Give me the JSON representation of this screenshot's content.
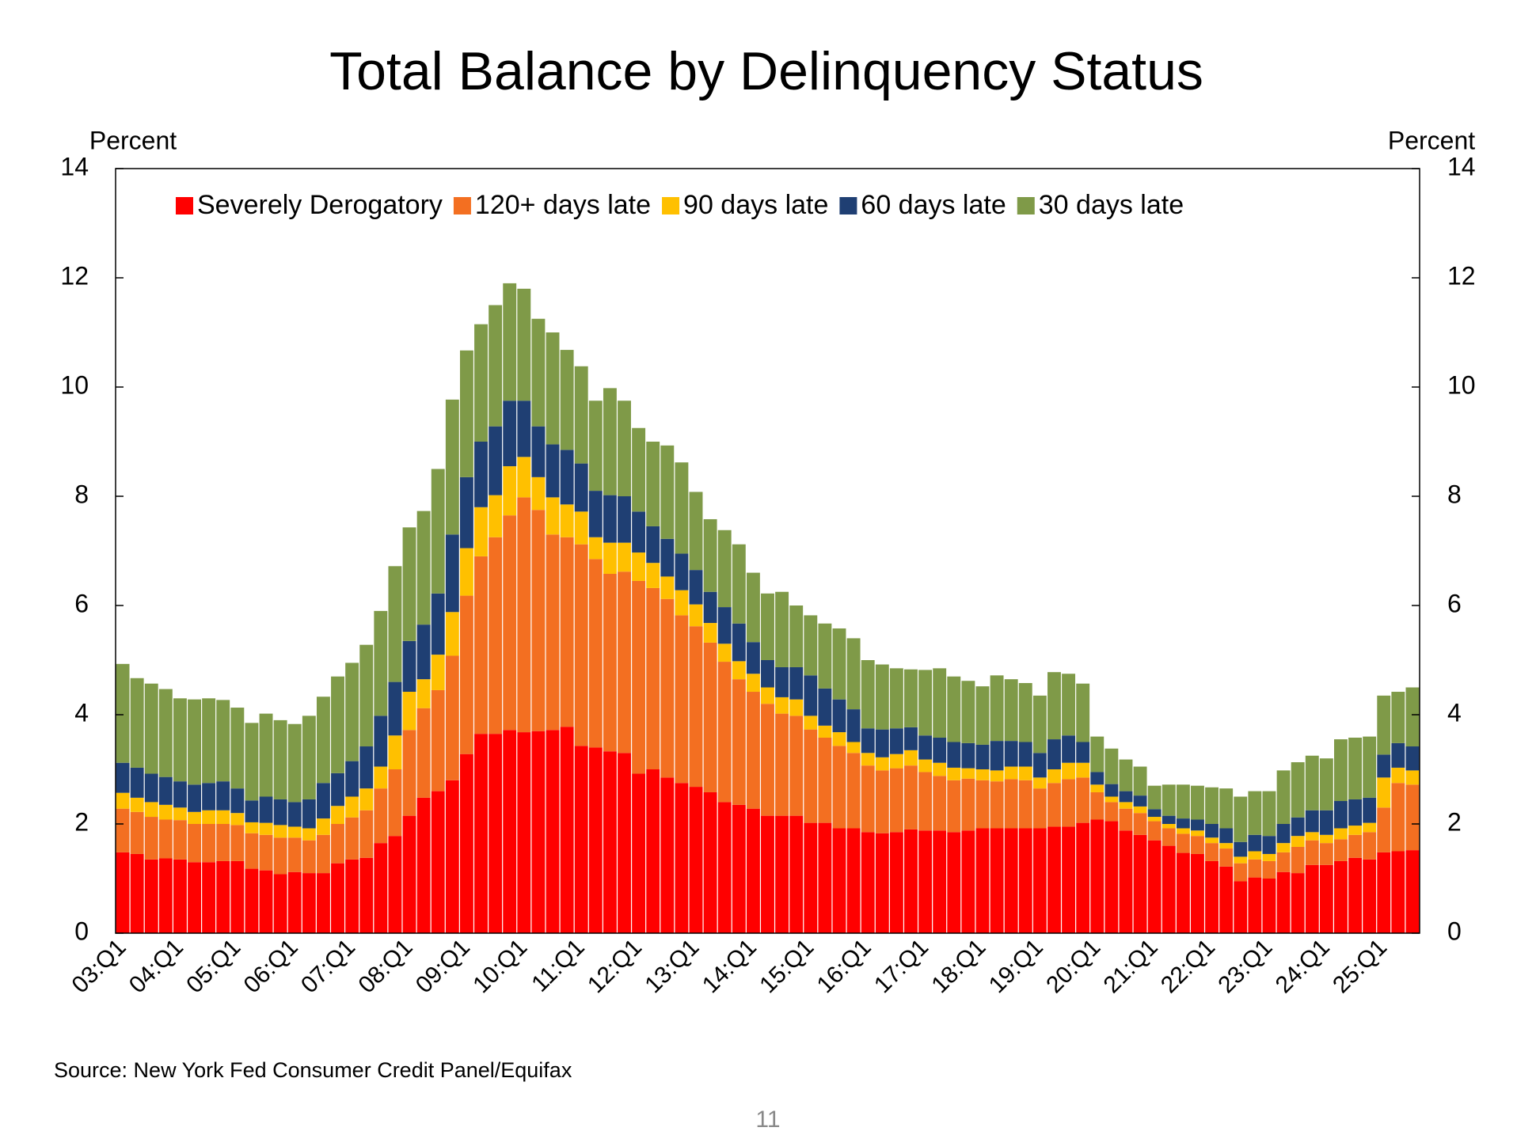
{
  "chart_data": {
    "type": "stacked_bar",
    "title": "Total Balance by Delinquency Status",
    "ylabel": "Percent",
    "y2label": "Percent",
    "source": "Source: New York Fed Consumer Credit Panel/Equifax",
    "page_number": "11",
    "categories": [
      "03:Q1",
      null,
      null,
      null,
      "04:Q1",
      null,
      null,
      null,
      "05:Q1",
      null,
      null,
      null,
      "06:Q1",
      null,
      null,
      null,
      "07:Q1",
      null,
      null,
      null,
      "08:Q1",
      null,
      null,
      null,
      "09:Q1",
      null,
      null,
      null,
      "10:Q1",
      null,
      null,
      null,
      "11:Q1",
      null,
      null,
      null,
      "12:Q1",
      null,
      null,
      null,
      "13:Q1",
      null,
      null,
      null,
      "14:Q1",
      null,
      null,
      null,
      "15:Q1",
      null,
      null,
      null,
      "16:Q1",
      null,
      null,
      null,
      "17:Q1",
      null,
      null,
      null,
      "18:Q1",
      null,
      null,
      null,
      "19:Q1",
      null,
      null,
      null,
      "20:Q1",
      null,
      null,
      null,
      "21:Q1",
      null,
      null,
      null,
      "22:Q1",
      null,
      null,
      null,
      "23:Q1",
      null,
      null,
      null,
      "24:Q1",
      null,
      null,
      null,
      "25:Q1",
      null,
      null
    ],
    "series": [
      {
        "name": "Severely Derogatory",
        "color": "#ff0000",
        "values": [
          1.48,
          1.45,
          1.35,
          1.37,
          1.35,
          1.3,
          1.3,
          1.32,
          1.32,
          1.18,
          1.15,
          1.08,
          1.12,
          1.1,
          1.1,
          1.28,
          1.35,
          1.38,
          1.65,
          1.78,
          2.15,
          2.48,
          2.6,
          2.8,
          3.28,
          3.65,
          3.65,
          3.72,
          3.68,
          3.7,
          3.72,
          3.78,
          3.43,
          3.4,
          3.33,
          3.3,
          2.92,
          3.0,
          2.85,
          2.75,
          2.68,
          2.58,
          2.4,
          2.35,
          2.28,
          2.15,
          2.15,
          2.15,
          2.02,
          2.02,
          1.92,
          1.92,
          1.85,
          1.83,
          1.85,
          1.9,
          1.88,
          1.88,
          1.85,
          1.88,
          1.92,
          1.92,
          1.92,
          1.92,
          1.92,
          1.95,
          1.95,
          2.02,
          2.08,
          2.05,
          1.88,
          1.8,
          1.7,
          1.6,
          1.47,
          1.45,
          1.32,
          1.22,
          0.95,
          1.02,
          1.0,
          1.12,
          1.1,
          1.25,
          1.25,
          1.32,
          1.38,
          1.35,
          1.48,
          1.5,
          1.52
        ]
      },
      {
        "name": "120+ days late",
        "color": "#f36f21",
        "values": [
          0.8,
          0.77,
          0.78,
          0.71,
          0.72,
          0.7,
          0.7,
          0.68,
          0.66,
          0.65,
          0.65,
          0.67,
          0.63,
          0.6,
          0.7,
          0.72,
          0.77,
          0.87,
          1.0,
          1.22,
          1.57,
          1.64,
          1.85,
          2.28,
          2.9,
          3.25,
          3.6,
          3.93,
          4.3,
          4.05,
          3.58,
          3.47,
          3.69,
          3.45,
          3.25,
          3.32,
          3.53,
          3.32,
          3.27,
          3.07,
          2.94,
          2.74,
          2.57,
          2.3,
          2.14,
          2.05,
          1.87,
          1.83,
          1.71,
          1.56,
          1.51,
          1.38,
          1.22,
          1.15,
          1.17,
          1.17,
          1.07,
          1.0,
          0.95,
          0.95,
          0.88,
          0.86,
          0.9,
          0.88,
          0.73,
          0.8,
          0.87,
          0.83,
          0.5,
          0.35,
          0.4,
          0.4,
          0.35,
          0.32,
          0.35,
          0.33,
          0.33,
          0.33,
          0.33,
          0.33,
          0.32,
          0.36,
          0.48,
          0.45,
          0.4,
          0.4,
          0.42,
          0.5,
          0.82,
          1.25,
          1.2
        ]
      },
      {
        "name": "90 days late",
        "color": "#ffc000",
        "values": [
          0.29,
          0.26,
          0.27,
          0.27,
          0.23,
          0.22,
          0.25,
          0.25,
          0.22,
          0.2,
          0.22,
          0.23,
          0.2,
          0.22,
          0.3,
          0.33,
          0.38,
          0.4,
          0.4,
          0.62,
          0.7,
          0.53,
          0.65,
          0.8,
          0.87,
          0.9,
          0.77,
          0.9,
          0.74,
          0.6,
          0.68,
          0.6,
          0.6,
          0.4,
          0.57,
          0.53,
          0.52,
          0.46,
          0.41,
          0.46,
          0.4,
          0.36,
          0.33,
          0.33,
          0.33,
          0.3,
          0.3,
          0.3,
          0.25,
          0.22,
          0.25,
          0.2,
          0.23,
          0.24,
          0.26,
          0.28,
          0.23,
          0.24,
          0.23,
          0.19,
          0.2,
          0.2,
          0.23,
          0.25,
          0.2,
          0.25,
          0.3,
          0.27,
          0.14,
          0.1,
          0.12,
          0.12,
          0.08,
          0.08,
          0.1,
          0.1,
          0.1,
          0.1,
          0.12,
          0.15,
          0.13,
          0.17,
          0.2,
          0.15,
          0.15,
          0.2,
          0.17,
          0.17,
          0.55,
          0.28,
          0.26
        ]
      },
      {
        "name": "60 days late",
        "color": "#1f3f73",
        "values": [
          0.55,
          0.55,
          0.52,
          0.51,
          0.48,
          0.5,
          0.5,
          0.53,
          0.45,
          0.4,
          0.48,
          0.47,
          0.45,
          0.53,
          0.65,
          0.6,
          0.65,
          0.77,
          0.93,
          0.98,
          0.93,
          1.0,
          1.12,
          1.42,
          1.3,
          1.2,
          1.26,
          1.2,
          1.03,
          0.93,
          0.97,
          1.0,
          0.88,
          0.85,
          0.87,
          0.85,
          0.75,
          0.67,
          0.69,
          0.67,
          0.63,
          0.57,
          0.67,
          0.69,
          0.58,
          0.5,
          0.55,
          0.59,
          0.74,
          0.68,
          0.6,
          0.6,
          0.45,
          0.51,
          0.47,
          0.42,
          0.44,
          0.46,
          0.47,
          0.46,
          0.45,
          0.54,
          0.47,
          0.45,
          0.45,
          0.55,
          0.5,
          0.38,
          0.23,
          0.23,
          0.2,
          0.2,
          0.14,
          0.15,
          0.18,
          0.2,
          0.25,
          0.27,
          0.27,
          0.3,
          0.33,
          0.35,
          0.34,
          0.4,
          0.45,
          0.5,
          0.48,
          0.46,
          0.42,
          0.45,
          0.44
        ]
      },
      {
        "name": "30 days late",
        "color": "#7f9a48",
        "values": [
          1.81,
          1.64,
          1.65,
          1.61,
          1.52,
          1.56,
          1.55,
          1.49,
          1.48,
          1.42,
          1.52,
          1.45,
          1.43,
          1.53,
          1.58,
          1.77,
          1.8,
          1.86,
          1.92,
          2.12,
          2.08,
          2.08,
          2.28,
          2.47,
          2.32,
          2.15,
          2.22,
          2.15,
          2.05,
          1.97,
          2.05,
          1.83,
          1.78,
          1.65,
          1.96,
          1.75,
          1.53,
          1.55,
          1.71,
          1.67,
          1.43,
          1.33,
          1.41,
          1.45,
          1.27,
          1.22,
          1.38,
          1.13,
          1.1,
          1.19,
          1.3,
          1.3,
          1.25,
          1.19,
          1.1,
          1.06,
          1.2,
          1.27,
          1.2,
          1.14,
          1.07,
          1.2,
          1.13,
          1.08,
          1.05,
          1.23,
          1.13,
          1.07,
          0.65,
          0.65,
          0.58,
          0.53,
          0.43,
          0.57,
          0.62,
          0.62,
          0.67,
          0.73,
          0.83,
          0.8,
          0.82,
          0.98,
          1.01,
          1.0,
          0.95,
          1.13,
          1.13,
          1.12,
          1.08,
          0.94,
          1.08
        ]
      }
    ],
    "ylim": [
      0,
      14
    ],
    "yticks": [
      0,
      2,
      4,
      6,
      8,
      10,
      12,
      14
    ],
    "y2lim": [
      0,
      14
    ],
    "y2ticks": [
      0,
      2,
      4,
      6,
      8,
      10,
      12,
      14
    ],
    "legend": "top"
  }
}
